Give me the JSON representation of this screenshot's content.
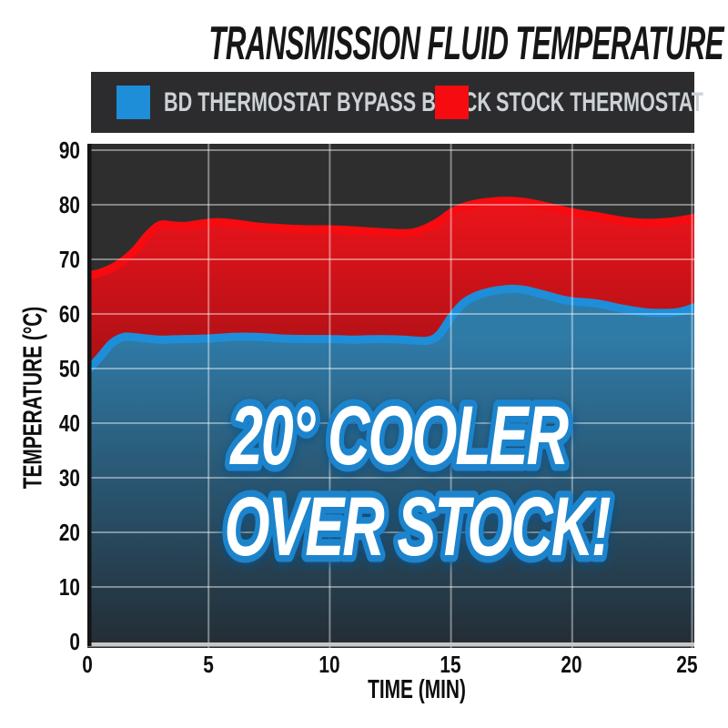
{
  "title": "TRANSMISSION FLUID TEMPERATURE",
  "legend": {
    "items": [
      {
        "label": "BD THERMOSTAT BYPASS BLOCK"
      },
      {
        "label": "STOCK THERMOSTAT"
      }
    ]
  },
  "annotation": {
    "line1": "20° COOLER",
    "line2": "OVER STOCK!"
  },
  "chart_data": {
    "type": "area",
    "title": "TRANSMISSION FLUID TEMPERATURE",
    "xlabel": "TIME (MIN)",
    "ylabel": "TEMPERATURE (°C)",
    "xlim": [
      0,
      25
    ],
    "ylim": [
      0,
      90
    ],
    "xticks": [
      0,
      5,
      10,
      15,
      20,
      25
    ],
    "yticks": [
      90,
      80,
      70,
      60,
      50,
      40,
      30,
      20,
      10,
      0
    ],
    "grid": true,
    "legend_position": "top",
    "colors": {
      "page": "#ffffff",
      "plot_background": "#2e2e2e",
      "grid": "rgba(255,255,255,0.42)",
      "baseline": "#c9c8c6",
      "axis": "#141414",
      "annotation_fill": "#ffffff",
      "annotation_outline": "#1e84cd",
      "annotation_glow": "#0b4f85"
    },
    "series": [
      {
        "name": "BD THERMOSTAT BYPASS BLOCK",
        "color": "#1e8ed9",
        "gradient": [
          "#2f7ba8",
          "#232c33"
        ],
        "points": [
          [
            0,
            49.5
          ],
          [
            0.5,
            52
          ],
          [
            1,
            54.6
          ],
          [
            1.5,
            55.8
          ],
          [
            2,
            55.7
          ],
          [
            3,
            55.3
          ],
          [
            4,
            55.4
          ],
          [
            5,
            55.5
          ],
          [
            6,
            55.8
          ],
          [
            7,
            55.8
          ],
          [
            8,
            55.5
          ],
          [
            9,
            55.4
          ],
          [
            10,
            55.4
          ],
          [
            11,
            55.3
          ],
          [
            12,
            55.4
          ],
          [
            13,
            55.3
          ],
          [
            14,
            55.1
          ],
          [
            14.5,
            56.3
          ],
          [
            15,
            59.5
          ],
          [
            15.5,
            62
          ],
          [
            16,
            63.3
          ],
          [
            16.5,
            64
          ],
          [
            17,
            64.4
          ],
          [
            17.5,
            64.6
          ],
          [
            18,
            64.4
          ],
          [
            18.5,
            63.9
          ],
          [
            19,
            63.3
          ],
          [
            19.5,
            62.7
          ],
          [
            20,
            62.3
          ],
          [
            21,
            61.9
          ],
          [
            22,
            61
          ],
          [
            23,
            60.3
          ],
          [
            24,
            60.2
          ],
          [
            24.5,
            60.5
          ],
          [
            25,
            61.2
          ]
        ]
      },
      {
        "name": "STOCK THERMOSTAT",
        "color": "#f50b10",
        "gradient": [
          "#ef141b",
          "#5c0d11"
        ],
        "points": [
          [
            0,
            67
          ],
          [
            0.5,
            67.5
          ],
          [
            1,
            68.4
          ],
          [
            1.5,
            69.8
          ],
          [
            2,
            71.8
          ],
          [
            2.5,
            74.5
          ],
          [
            3,
            76.3
          ],
          [
            3.5,
            76.2
          ],
          [
            4,
            76.1
          ],
          [
            4.5,
            76.4
          ],
          [
            5,
            76.7
          ],
          [
            5.5,
            76.8
          ],
          [
            6,
            76.6
          ],
          [
            6.5,
            76.3
          ],
          [
            7,
            76
          ],
          [
            8,
            75.7
          ],
          [
            9,
            75.5
          ],
          [
            10,
            75.5
          ],
          [
            11,
            75.3
          ],
          [
            12,
            75
          ],
          [
            13,
            74.8
          ],
          [
            13.5,
            75
          ],
          [
            14,
            75.8
          ],
          [
            14.5,
            77
          ],
          [
            15,
            78.6
          ],
          [
            15.5,
            79.6
          ],
          [
            16,
            80.2
          ],
          [
            16.5,
            80.5
          ],
          [
            17,
            80.7
          ],
          [
            17.5,
            80.7
          ],
          [
            18,
            80.5
          ],
          [
            18.5,
            80.1
          ],
          [
            19,
            79.6
          ],
          [
            19.5,
            79.1
          ],
          [
            20,
            78.6
          ],
          [
            20.5,
            78.2
          ],
          [
            21,
            77.9
          ],
          [
            22,
            77.1
          ],
          [
            23,
            76.7
          ],
          [
            24,
            76.9
          ],
          [
            24.5,
            77.2
          ],
          [
            25,
            77.6
          ]
        ]
      }
    ]
  }
}
